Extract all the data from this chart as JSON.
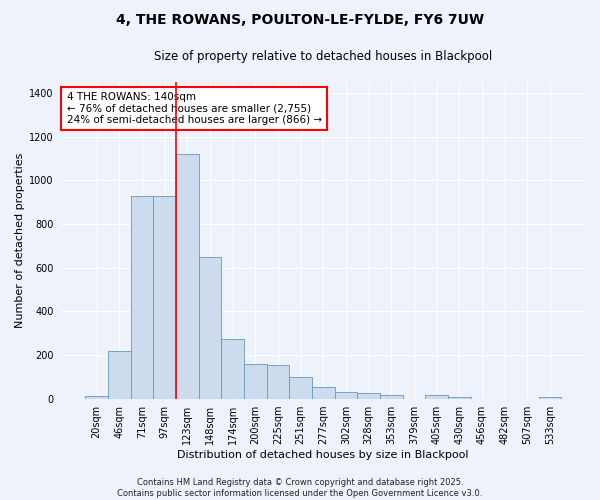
{
  "title": "4, THE ROWANS, POULTON-LE-FYLDE, FY6 7UW",
  "subtitle": "Size of property relative to detached houses in Blackpool",
  "xlabel": "Distribution of detached houses by size in Blackpool",
  "ylabel": "Number of detached properties",
  "categories": [
    "20sqm",
    "46sqm",
    "71sqm",
    "97sqm",
    "123sqm",
    "148sqm",
    "174sqm",
    "200sqm",
    "225sqm",
    "251sqm",
    "277sqm",
    "302sqm",
    "328sqm",
    "353sqm",
    "379sqm",
    "405sqm",
    "430sqm",
    "456sqm",
    "482sqm",
    "507sqm",
    "533sqm"
  ],
  "values": [
    12,
    220,
    930,
    930,
    1120,
    650,
    275,
    160,
    155,
    100,
    55,
    30,
    25,
    15,
    0,
    18,
    10,
    0,
    0,
    0,
    8
  ],
  "bar_color": "#ccdcee",
  "bar_edge_color": "#6699bb",
  "background_color": "#eef2fb",
  "grid_color": "#ffffff",
  "annotation_line1": "4 THE ROWANS: 140sqm",
  "annotation_line2": "← 76% of detached houses are smaller (2,755)",
  "annotation_line3": "24% of semi-detached houses are larger (866) →",
  "red_line_x": 3.5,
  "ylim": [
    0,
    1450
  ],
  "yticks": [
    0,
    200,
    400,
    600,
    800,
    1000,
    1200,
    1400
  ],
  "footer_text": "Contains HM Land Registry data © Crown copyright and database right 2025.\nContains public sector information licensed under the Open Government Licence v3.0.",
  "title_fontsize": 10,
  "subtitle_fontsize": 8.5,
  "ylabel_fontsize": 8,
  "xlabel_fontsize": 8,
  "tick_fontsize": 7,
  "annot_fontsize": 7.5,
  "footer_fontsize": 6
}
